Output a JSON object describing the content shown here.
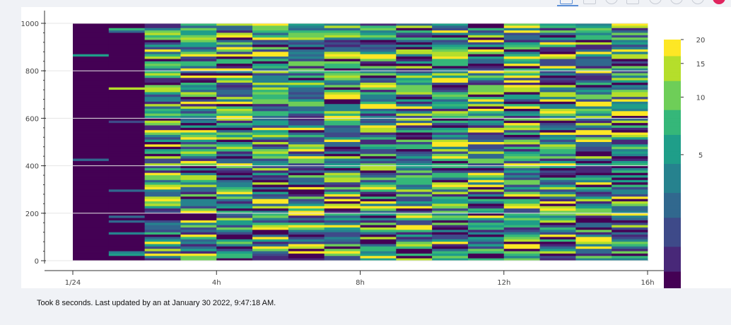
{
  "status_text": "Took 8 seconds. Last updated by an at January 30 2022, 9:47:18 AM.",
  "toolbar": {
    "icons": [
      "pan-icon",
      "box-zoom-icon",
      "wheel-zoom-icon",
      "save-icon",
      "reset-icon",
      "help-icon",
      "bokeh-logo-icon"
    ]
  },
  "colors": {
    "viridis": [
      "#440154",
      "#482878",
      "#3e4a89",
      "#31688e",
      "#26828e",
      "#1f9e89",
      "#35b779",
      "#6ece58",
      "#b5de2b",
      "#fde725"
    ],
    "background": "#f0f2f6",
    "active_tool": "#5b8fd6"
  },
  "chart_data": {
    "type": "heatmap",
    "title": "",
    "xlabel": "",
    "ylabel": "",
    "x_tick_labels": [
      "1/24",
      "4h",
      "8h",
      "12h",
      "16h"
    ],
    "x_tick_hours": [
      0,
      4,
      8,
      12,
      16
    ],
    "x_range_hours": [
      0,
      16
    ],
    "y_ticks": [
      0,
      200,
      400,
      600,
      800,
      1000
    ],
    "y_range": [
      0,
      1000
    ],
    "time_buckets": [
      0,
      1,
      2,
      3,
      4,
      5,
      6,
      7,
      8,
      9,
      10,
      11,
      12,
      13,
      14,
      15,
      16
    ],
    "colorbar": {
      "ticks": [
        5,
        10,
        15,
        20
      ],
      "range": [
        1,
        20
      ],
      "scale": "log",
      "palette": "Viridis"
    },
    "grid": true,
    "legend": "colorbar-right"
  }
}
